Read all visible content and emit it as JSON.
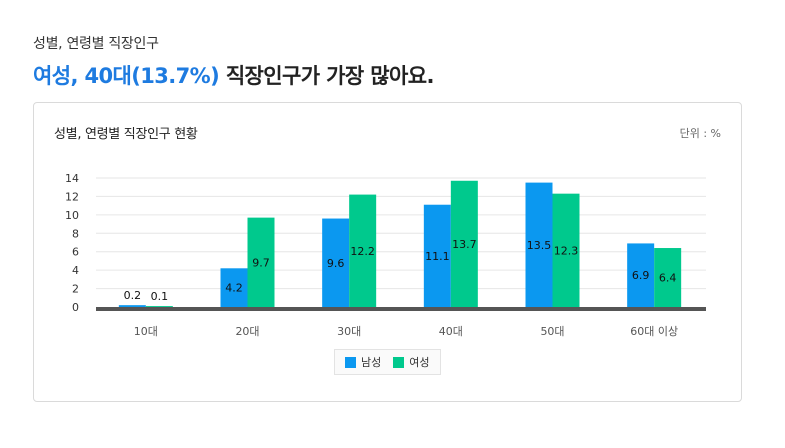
{
  "header": {
    "section_title": "성별, 연령별 직장인구",
    "headline_highlight": "여성, 40대(13.7%)",
    "headline_rest": " 직장인구가 가장 많아요."
  },
  "card": {
    "title": "성별, 연령별 직장인구 현황",
    "unit": "단위 : %"
  },
  "colors": {
    "male": "#0b98f0",
    "female": "#00c98d",
    "highlight": "#1e7be0"
  },
  "chart_data": {
    "type": "bar",
    "title": "성별, 연령별 직장인구 현황",
    "categories": [
      "10대",
      "20대",
      "30대",
      "40대",
      "50대",
      "60대 이상"
    ],
    "series": [
      {
        "name": "남성",
        "values": [
          0.2,
          4.2,
          9.6,
          11.1,
          13.5,
          6.9
        ]
      },
      {
        "name": "여성",
        "values": [
          0.1,
          9.7,
          12.2,
          13.7,
          12.3,
          6.4
        ]
      }
    ],
    "yticks": [
      0,
      2,
      4,
      6,
      8,
      10,
      12,
      14
    ],
    "ylim": [
      0,
      14
    ],
    "grid": true,
    "legend_position": "bottom"
  }
}
